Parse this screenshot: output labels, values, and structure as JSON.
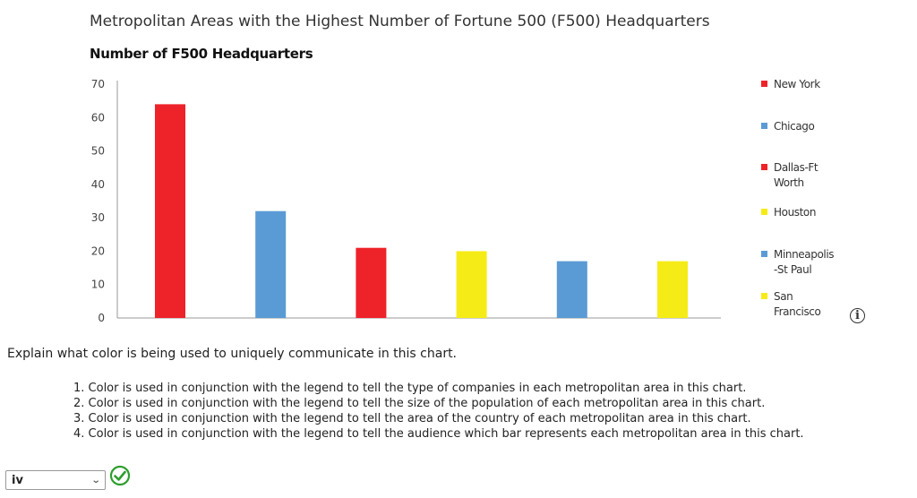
{
  "page": {
    "title": "Metropolitan Areas with the Highest Number of Fortune 500 (F500) Headquarters",
    "y_title": "Number of F500 Headquarters"
  },
  "chart_data": {
    "type": "bar",
    "title": "Metropolitan Areas with the Highest Number of Fortune 500 (F500) Headquarters",
    "ylabel": "Number of F500 Headquarters",
    "xlabel": "",
    "ylim": [
      0,
      70
    ],
    "yticks": [
      0,
      10,
      20,
      30,
      40,
      50,
      60,
      70
    ],
    "grid": false,
    "legend_position": "right",
    "categories": [
      "New York",
      "Chicago",
      "Dallas-Ft Worth",
      "Houston",
      "Minneapolis-St Paul",
      "San Francisco"
    ],
    "values": [
      64,
      32,
      21,
      20,
      17,
      17
    ],
    "colors": [
      "#ee2229",
      "#5b9bd5",
      "#ee2229",
      "#f5ec17",
      "#5b9bd5",
      "#f5ec17"
    ],
    "legend": [
      {
        "lines": [
          "New York"
        ],
        "color": "#ee2229"
      },
      {
        "lines": [
          "Chicago"
        ],
        "color": "#5b9bd5"
      },
      {
        "lines": [
          "Dallas-Ft",
          "Worth"
        ],
        "color": "#ee2229"
      },
      {
        "lines": [
          "Houston"
        ],
        "color": "#f5ec17"
      },
      {
        "lines": [
          "Minneapolis",
          "-St Paul"
        ],
        "color": "#5b9bd5"
      },
      {
        "lines": [
          "San",
          "Francisco"
        ],
        "color": "#f5ec17"
      }
    ]
  },
  "question": {
    "prompt": "Explain what color is being used to uniquely communicate in this chart.",
    "options": [
      "1. Color is used in conjunction with the legend to tell the type of companies in each metropolitan area in this chart.",
      "2. Color is used in conjunction with the legend to tell the size of the population of each metropolitan area in this chart.",
      "3. Color is used in conjunction with the legend to tell the area of the country of each metropolitan area in this chart.",
      "4. Color is used in conjunction with the legend to tell the audience which bar represents each metropolitan area in this chart."
    ],
    "selected_answer": "iv",
    "info_icon": "i",
    "status_icon": "check-circle-icon",
    "status_color": "#2e9e2e"
  }
}
